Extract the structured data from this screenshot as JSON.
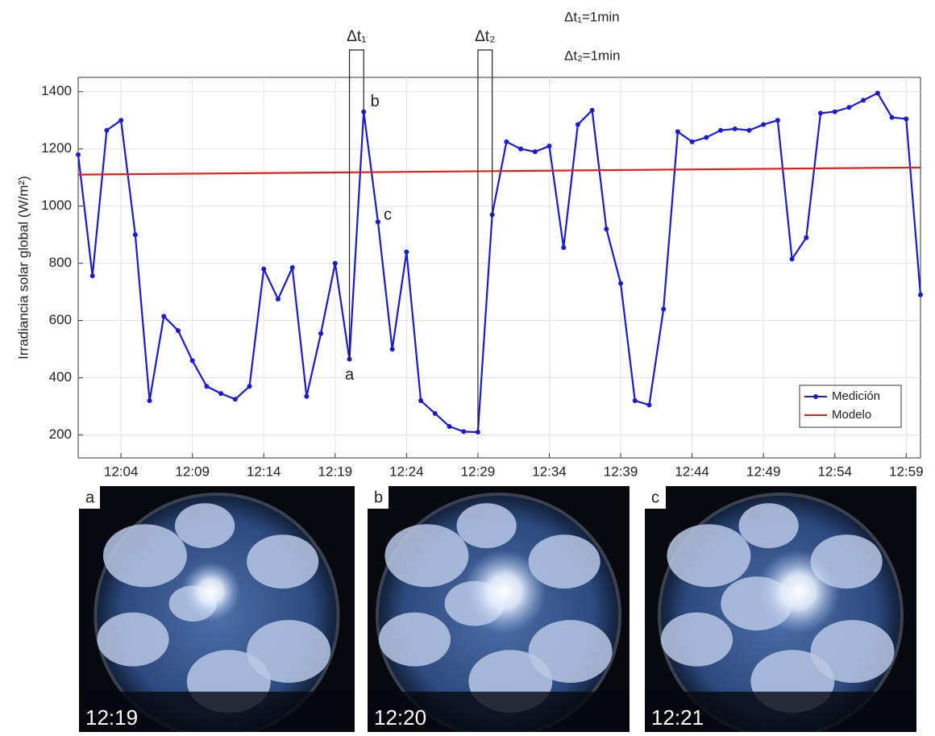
{
  "chart_data": {
    "type": "line",
    "y_label": "Irradiancia solar global (W/m²)",
    "x": [
      "12:01",
      "12:02",
      "12:03",
      "12:04",
      "12:05",
      "12:06",
      "12:07",
      "12:08",
      "12:09",
      "12:10",
      "12:11",
      "12:12",
      "12:13",
      "12:14",
      "12:15",
      "12:16",
      "12:17",
      "12:18",
      "12:19",
      "12:20",
      "12:21",
      "12:22",
      "12:23",
      "12:24",
      "12:25",
      "12:26",
      "12:27",
      "12:28",
      "12:29",
      "12:30",
      "12:31",
      "12:32",
      "12:33",
      "12:34",
      "12:35",
      "12:36",
      "12:37",
      "12:38",
      "12:39",
      "12:40",
      "12:41",
      "12:42",
      "12:43",
      "12:44",
      "12:45",
      "12:46",
      "12:47",
      "12:48",
      "12:49",
      "12:50",
      "12:51",
      "12:52",
      "12:53",
      "12:54",
      "12:55",
      "12:56",
      "12:57",
      "12:58",
      "12:59",
      "13:00"
    ],
    "series": [
      {
        "name": "Medición",
        "color": "#1a1ad0",
        "marker": true,
        "values": [
          1180,
          756,
          1265,
          1300,
          900,
          320,
          615,
          565,
          460,
          370,
          345,
          325,
          370,
          780,
          675,
          785,
          335,
          555,
          800,
          465,
          1330,
          945,
          500,
          840,
          320,
          275,
          230,
          212,
          210,
          970,
          1225,
          1200,
          1190,
          1210,
          855,
          1285,
          1335,
          920,
          730,
          320,
          305,
          640,
          1260,
          1225,
          1240,
          1265,
          1270,
          1265,
          1285,
          1300,
          815,
          890,
          1325,
          1330,
          1345,
          1370,
          1395,
          1310,
          1305,
          690
        ]
      },
      {
        "name": "Modelo",
        "color": "#e0201c",
        "marker": false,
        "x": [
          "12:01",
          "13:00"
        ],
        "values": [
          1110,
          1135
        ]
      }
    ],
    "xlim": [
      "12:01",
      "13:00"
    ],
    "xticks": [
      "12:04",
      "12:09",
      "12:14",
      "12:19",
      "12:24",
      "12:29",
      "12:34",
      "12:39",
      "12:44",
      "12:49",
      "12:54",
      "12:59"
    ],
    "ylim": [
      120,
      1450
    ],
    "yticks": [
      200,
      400,
      600,
      800,
      1000,
      1200,
      1400
    ],
    "grid": true,
    "legend": "lower right",
    "point_labels": [
      "a",
      "b",
      "c"
    ],
    "intervals": [
      "Δt₁",
      "Δt₂"
    ],
    "notes": [
      "Δt₁=1min",
      "Δt₂=1min"
    ]
  },
  "photos": [
    {
      "letter": "a",
      "time": "12:19"
    },
    {
      "letter": "b",
      "time": "12:20"
    },
    {
      "letter": "c",
      "time": "12:21"
    }
  ]
}
